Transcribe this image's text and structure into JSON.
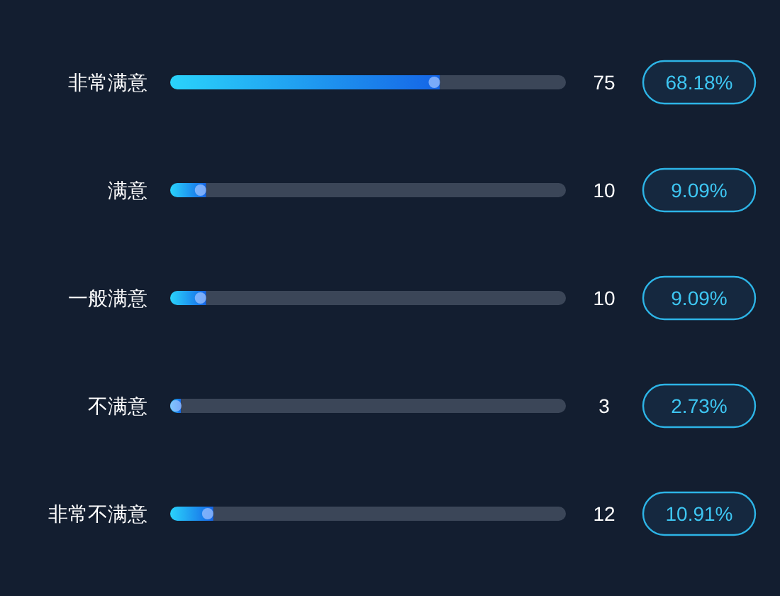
{
  "chart_data": {
    "type": "bar",
    "orientation": "horizontal",
    "stacked": true,
    "categories": [
      "非常满意",
      "满意",
      "一般满意",
      "不满意",
      "非常不满意"
    ],
    "series": [
      {
        "color": "#1565e6",
        "values": [
          68.18,
          9.09,
          9.09,
          2.73,
          10.91
        ],
        "value_labels": [
          "68.18%",
          "9.09%",
          "9.09%",
          "2.73%",
          "10.91%"
        ]
      },
      {
        "color": "#3b4658",
        "values": [
          31.82,
          90.91,
          90.91,
          97.27,
          89.09
        ]
      }
    ],
    "annotations": [
      "75",
      "10",
      "10",
      "3",
      "12"
    ],
    "tick_labels": "y"
  }
}
